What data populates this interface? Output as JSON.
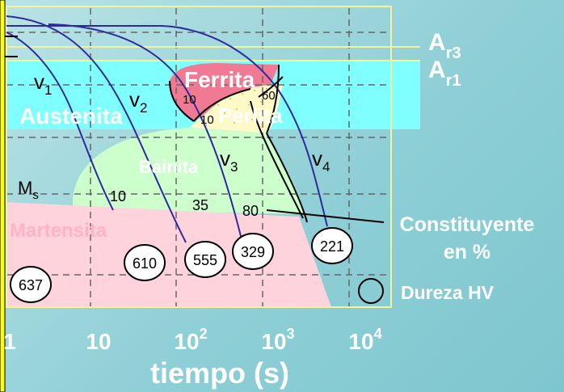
{
  "colors": {
    "background": "#9fd6dc",
    "austenite": "#7fffff",
    "ferrite": "#f07a93",
    "pearlite": "#fff9c8",
    "bainite": "#ccffcc",
    "martensite": "#ffd3dc",
    "cooling_curve": "#2c2c9c",
    "frame": "#f3f39a",
    "left_bar": "#ffff00"
  },
  "lines": {
    "ar3": "A",
    "ar3_sub": "r3",
    "ar1": "A",
    "ar1_sub": "r1",
    "ms": "M",
    "ms_sub": "s"
  },
  "regions": {
    "austenite": "Austenita",
    "ferrite": "Ferrita",
    "pearlite": "Perlita",
    "bainite": "Bainita",
    "martensite": "Martensita"
  },
  "curves": [
    {
      "name": "v",
      "sub": "1"
    },
    {
      "name": "v",
      "sub": "2"
    },
    {
      "name": "v",
      "sub": "3"
    },
    {
      "name": "v",
      "sub": "4"
    }
  ],
  "percentages": {
    "ferrite_start": "10",
    "pearlite_start": "10",
    "pearlite_end": "60",
    "bainite_1": "10",
    "bainite_2": "35",
    "bainite_3": "80"
  },
  "hardness": [
    "637",
    "610",
    "555",
    "329",
    "221"
  ],
  "legend": {
    "constituent_line1": "Constituyente",
    "constituent_line2": "en %",
    "hardness": "Dureza HV"
  },
  "x_axis": {
    "ticks": [
      {
        "base": "1",
        "exp": ""
      },
      {
        "base": "10",
        "exp": ""
      },
      {
        "base": "10",
        "exp": "2"
      },
      {
        "base": "10",
        "exp": "3"
      },
      {
        "base": "10",
        "exp": "4"
      }
    ],
    "label": "tiempo (s)"
  }
}
